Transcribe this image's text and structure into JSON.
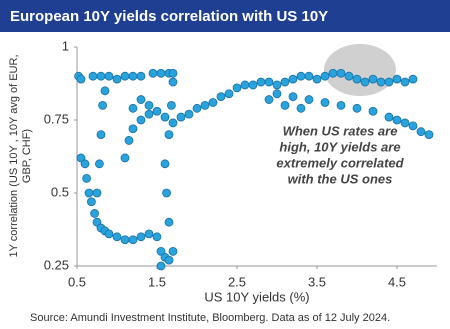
{
  "chart_data": {
    "type": "scatter",
    "title": "European 10Y yields correlation with US 10Y",
    "x_label": "US 10Y yields (%)",
    "y_label": [
      "1Y correlation (US 10Y , 10Y avg of EUR,",
      "GBP, CHF)"
    ],
    "annotation": [
      "When US rates are",
      "high, 10Y yields are",
      "extremely correlated",
      "with the US ones"
    ],
    "source": "Source: Amundi Investment Institute, Bloomberg. Data as of 12 July 2024.",
    "color": "#29a3dc",
    "xlim": [
      0.5,
      5.0
    ],
    "xticks": [
      0.5,
      1.5,
      2.5,
      3.5,
      4.5
    ],
    "ylim": [
      0.25,
      1
    ],
    "yticks": [
      0.25,
      0.5,
      0.75,
      1
    ],
    "x": [
      0.52,
      0.55,
      0.7,
      0.8,
      0.9,
      1.0,
      1.1,
      1.2,
      1.3,
      1.45,
      1.55,
      1.65,
      1.7,
      0.55,
      0.6,
      0.62,
      0.65,
      0.68,
      0.72,
      0.75,
      0.8,
      0.85,
      0.9,
      1.0,
      1.1,
      1.2,
      1.3,
      1.4,
      1.5,
      1.55,
      1.6,
      1.65,
      1.7,
      1.65,
      1.62,
      1.6,
      1.65,
      1.68,
      1.7,
      0.75,
      0.78,
      0.8,
      0.82,
      0.85,
      1.1,
      1.15,
      1.2,
      1.3,
      1.4,
      1.5,
      1.6,
      1.7,
      1.4,
      1.2,
      1.3,
      1.8,
      1.9,
      2.0,
      2.1,
      2.2,
      2.3,
      2.4,
      2.5,
      2.6,
      2.7,
      2.8,
      2.9,
      3.0,
      3.1,
      3.2,
      3.3,
      3.4,
      3.5,
      3.6,
      3.7,
      3.8,
      3.9,
      4.0,
      4.1,
      4.2,
      4.3,
      4.4,
      4.5,
      4.6,
      4.7,
      3.0,
      3.2,
      3.4,
      3.6,
      3.8,
      4.0,
      4.2,
      4.4,
      4.5,
      4.6,
      4.7,
      4.8,
      4.9,
      2.9,
      3.1,
      3.3,
      1.55
    ],
    "values": [
      0.9,
      0.89,
      0.9,
      0.9,
      0.9,
      0.89,
      0.9,
      0.9,
      0.9,
      0.91,
      0.91,
      0.91,
      0.91,
      0.62,
      0.6,
      0.55,
      0.5,
      0.47,
      0.43,
      0.4,
      0.38,
      0.37,
      0.36,
      0.35,
      0.34,
      0.34,
      0.35,
      0.36,
      0.35,
      0.3,
      0.28,
      0.27,
      0.3,
      0.4,
      0.5,
      0.6,
      0.7,
      0.8,
      0.88,
      0.5,
      0.6,
      0.7,
      0.8,
      0.85,
      0.62,
      0.68,
      0.72,
      0.75,
      0.77,
      0.78,
      0.76,
      0.74,
      0.8,
      0.79,
      0.82,
      0.76,
      0.77,
      0.79,
      0.8,
      0.81,
      0.83,
      0.84,
      0.86,
      0.87,
      0.87,
      0.88,
      0.88,
      0.87,
      0.88,
      0.89,
      0.9,
      0.9,
      0.89,
      0.9,
      0.91,
      0.91,
      0.9,
      0.89,
      0.88,
      0.89,
      0.88,
      0.88,
      0.89,
      0.88,
      0.89,
      0.84,
      0.83,
      0.82,
      0.81,
      0.8,
      0.79,
      0.78,
      0.76,
      0.75,
      0.74,
      0.73,
      0.71,
      0.7,
      0.82,
      0.8,
      0.79,
      0.25
    ]
  }
}
